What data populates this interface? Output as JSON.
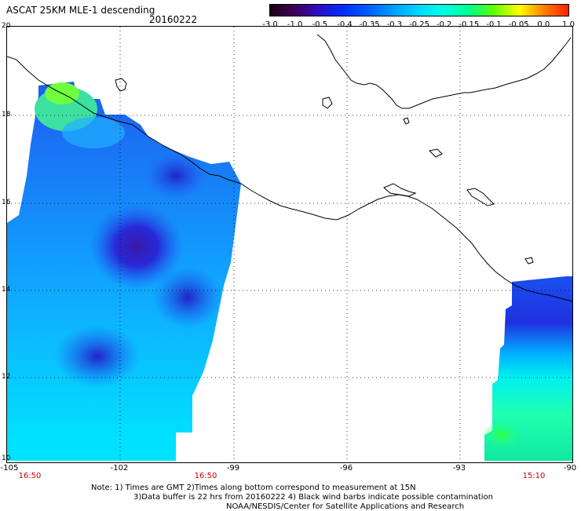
{
  "header": {
    "title": "ASCAT 25KM MLE-1 descending",
    "date": "20160222"
  },
  "colorbar": {
    "ticks": [
      "-3.0",
      "-1.0",
      "-0.5",
      "-0.4",
      "-0.35",
      "-0.3",
      "-0.25",
      "-0.2",
      "-0.15",
      "-0.1",
      "-0.05",
      "0.0",
      "1.0"
    ],
    "colors": [
      "#1a0012",
      "#40005a",
      "#2a10c8",
      "#0030ff",
      "#0060ff",
      "#00a0ff",
      "#00d8ff",
      "#00ffe0",
      "#00ff90",
      "#60ff00",
      "#ffff00",
      "#ff8000",
      "#ff2000"
    ]
  },
  "map": {
    "lat_labels": [
      "20",
      "18",
      "16",
      "14",
      "12",
      "10"
    ],
    "lon_labels": [
      "-105",
      "-102",
      "-99",
      "-96",
      "-93",
      "-90"
    ],
    "swath_times": [
      "16:50",
      "16:50",
      "15:10"
    ],
    "colors": {
      "swath_blue": "#1e5cf0",
      "swath_dark": "#2a2ad8",
      "swath_cyan": "#00e0ff",
      "swath_green": "#20ff80",
      "coast": "#000000",
      "grid": "#000000"
    }
  },
  "notes": {
    "line1": "Note: 1) Times are GMT 2)Times along bottom correspond to measurement at 15N",
    "line2": "3)Data buffer is 22 hrs from 20160222 4) Black wind barbs indicate possible contamination",
    "line3": "NOAA/NESDIS/Center for Satellite Applications and Research"
  }
}
